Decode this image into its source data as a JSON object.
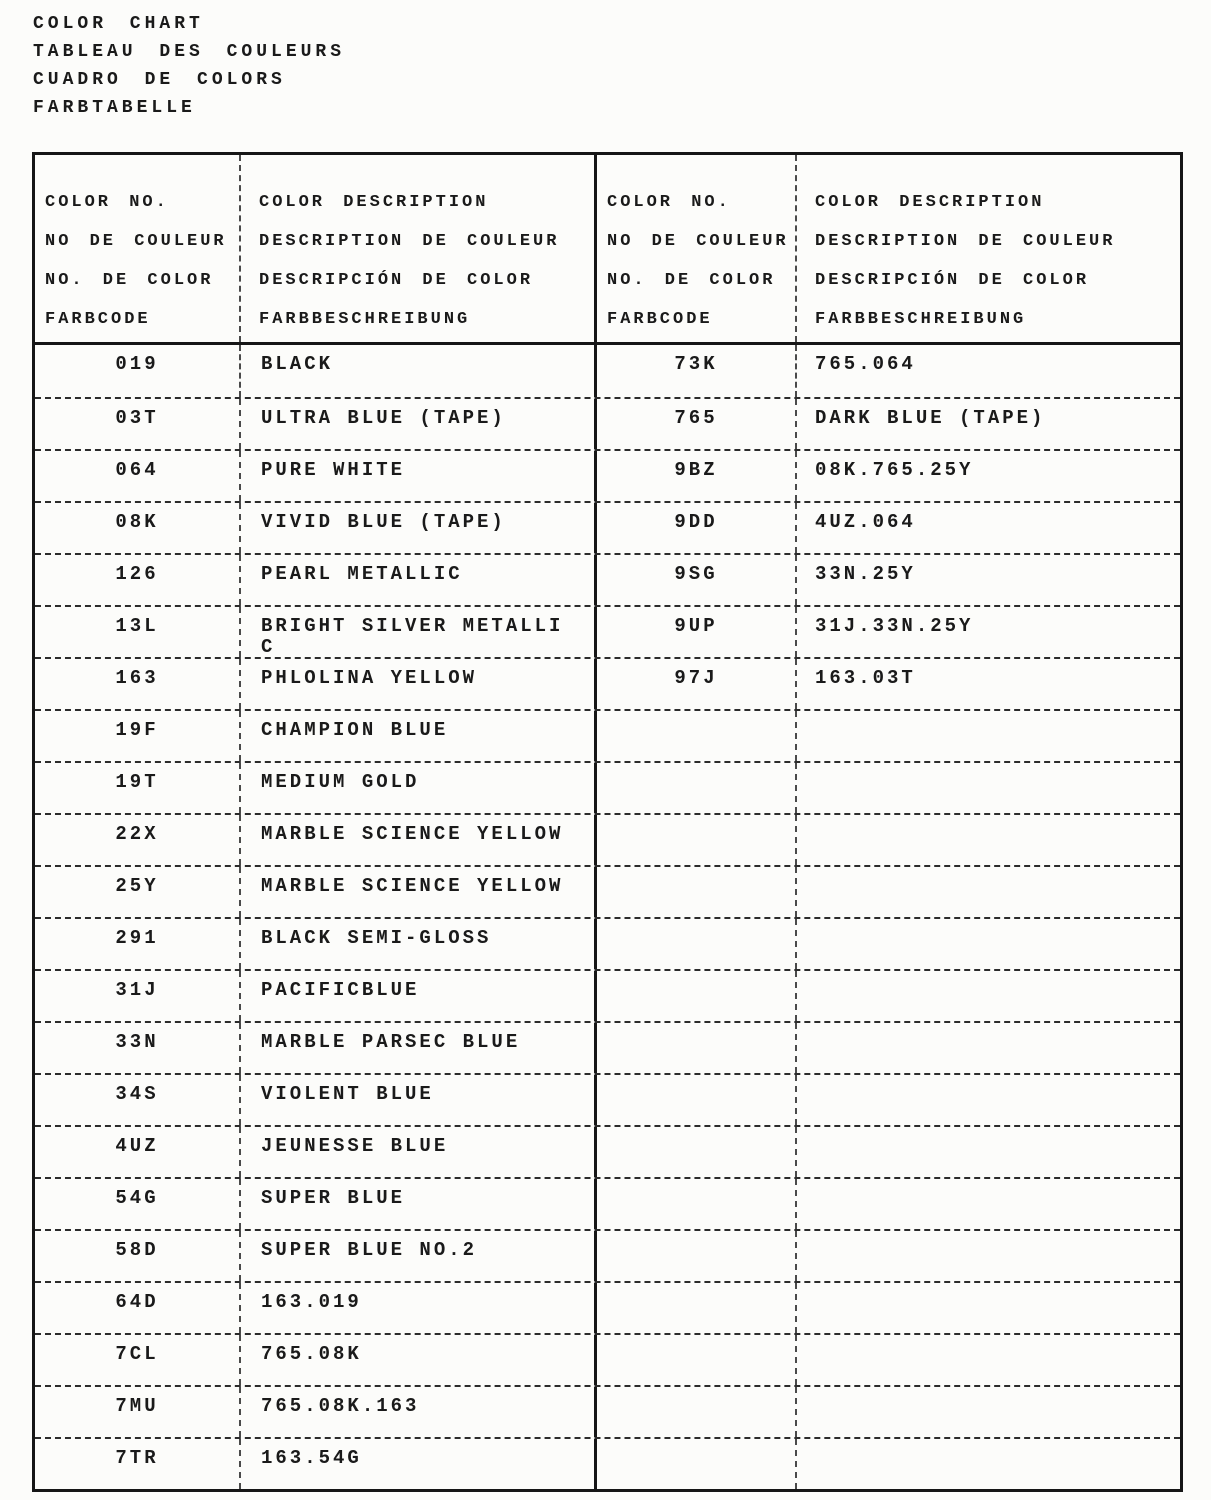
{
  "page": {
    "title_lines": [
      "COLOR CHART",
      "TABLEAU DES COULEURS",
      "CUADRO DE COLORS",
      "FARBTABELLE"
    ]
  },
  "table": {
    "header": {
      "no_lines": [
        "COLOR NO.",
        "NO DE COULEUR",
        "NO. DE COLOR",
        "FARBCODE"
      ],
      "desc_lines": [
        "COLOR DESCRIPTION",
        "DESCRIPTION DE COULEUR",
        "DESCRIPCIÓN DE COLOR",
        "FARBBESCHREIBUNG"
      ]
    },
    "rows": [
      {
        "l_code": "019",
        "l_desc": "BLACK",
        "r_code": "73K",
        "r_desc": "765.064"
      },
      {
        "l_code": "03T",
        "l_desc": "ULTRA BLUE (TAPE)",
        "r_code": "765",
        "r_desc": "DARK BLUE (TAPE)"
      },
      {
        "l_code": "064",
        "l_desc": "PURE WHITE",
        "r_code": "9BZ",
        "r_desc": "08K.765.25Y"
      },
      {
        "l_code": "08K",
        "l_desc": "VIVID BLUE (TAPE)",
        "r_code": "9DD",
        "r_desc": "4UZ.064"
      },
      {
        "l_code": "126",
        "l_desc": "PEARL METALLIC",
        "r_code": "9SG",
        "r_desc": "33N.25Y"
      },
      {
        "l_code": "13L",
        "l_desc": "BRIGHT SILVER METALLI\nC",
        "r_code": "9UP",
        "r_desc": "31J.33N.25Y"
      },
      {
        "l_code": "163",
        "l_desc": "PHLOLINA YELLOW",
        "r_code": "97J",
        "r_desc": "163.03T"
      },
      {
        "l_code": "19F",
        "l_desc": "CHAMPION BLUE",
        "r_code": "",
        "r_desc": ""
      },
      {
        "l_code": "19T",
        "l_desc": "MEDIUM GOLD",
        "r_code": "",
        "r_desc": ""
      },
      {
        "l_code": "22X",
        "l_desc": "MARBLE SCIENCE YELLOW",
        "r_code": "",
        "r_desc": ""
      },
      {
        "l_code": "25Y",
        "l_desc": "MARBLE SCIENCE YELLOW",
        "r_code": "",
        "r_desc": ""
      },
      {
        "l_code": "291",
        "l_desc": "BLACK SEMI-GLOSS",
        "r_code": "",
        "r_desc": ""
      },
      {
        "l_code": "31J",
        "l_desc": "PACIFICBLUE",
        "r_code": "",
        "r_desc": ""
      },
      {
        "l_code": "33N",
        "l_desc": "MARBLE PARSEC BLUE",
        "r_code": "",
        "r_desc": ""
      },
      {
        "l_code": "34S",
        "l_desc": "VIOLENT BLUE",
        "r_code": "",
        "r_desc": ""
      },
      {
        "l_code": "4UZ",
        "l_desc": "JEUNESSE BLUE",
        "r_code": "",
        "r_desc": ""
      },
      {
        "l_code": "54G",
        "l_desc": "SUPER BLUE",
        "r_code": "",
        "r_desc": ""
      },
      {
        "l_code": "58D",
        "l_desc": "SUPER BLUE NO.2",
        "r_code": "",
        "r_desc": ""
      },
      {
        "l_code": "64D",
        "l_desc": "163.019",
        "r_code": "",
        "r_desc": ""
      },
      {
        "l_code": "7CL",
        "l_desc": "765.08K",
        "r_code": "",
        "r_desc": ""
      },
      {
        "l_code": "7MU",
        "l_desc": "765.08K.163",
        "r_code": "",
        "r_desc": ""
      },
      {
        "l_code": "7TR",
        "l_desc": "163.54G",
        "r_code": "",
        "r_desc": ""
      }
    ]
  },
  "colors": {
    "ink": "#1a1a1a",
    "paper": "#fcfcfa"
  }
}
